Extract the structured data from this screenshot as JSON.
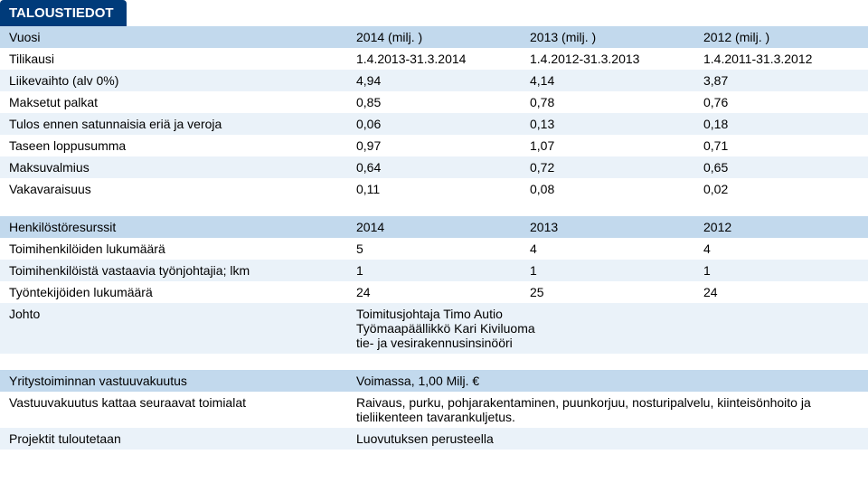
{
  "title": "TALOUSTIEDOT",
  "finance": {
    "header": {
      "label": "Vuosi",
      "c1": "2014 (milj. )",
      "c2": "2013 (milj. )",
      "c3": "2012 (milj. )"
    },
    "rows": [
      {
        "label": "Tilikausi",
        "c1": "1.4.2013-31.3.2014",
        "c2": "1.4.2012-31.3.2013",
        "c3": "1.4.2011-31.3.2012"
      },
      {
        "label": "Liikevaihto (alv 0%)",
        "c1": "4,94",
        "c2": "4,14",
        "c3": "3,87"
      },
      {
        "label": "Maksetut palkat",
        "c1": "0,85",
        "c2": "0,78",
        "c3": "0,76"
      },
      {
        "label": "Tulos ennen satunnaisia eriä ja veroja",
        "c1": "0,06",
        "c2": "0,13",
        "c3": "0,18"
      },
      {
        "label": "Taseen loppusumma",
        "c1": "0,97",
        "c2": "1,07",
        "c3": "0,71"
      },
      {
        "label": "Maksuvalmius",
        "c1": "0,64",
        "c2": "0,72",
        "c3": "0,65"
      },
      {
        "label": "Vakavaraisuus",
        "c1": "0,11",
        "c2": "0,08",
        "c3": "0,02"
      }
    ]
  },
  "hr": {
    "header": {
      "label": "Henkilöstöresurssit",
      "c1": "2014",
      "c2": "2013",
      "c3": "2012"
    },
    "rows": [
      {
        "label": "Toimihenkilöiden lukumäärä",
        "c1": "5",
        "c2": "4",
        "c3": "4"
      },
      {
        "label": "Toimihenkilöistä vastaavia työnjohtajia; lkm",
        "c1": "1",
        "c2": "1",
        "c3": "1"
      },
      {
        "label": "Työntekijöiden lukumäärä",
        "c1": "24",
        "c2": "25",
        "c3": "24"
      }
    ],
    "johto": {
      "label": "Johto",
      "value": "Toimitusjohtaja Timo Autio\nTyömaapäällikkö Kari Kiviluoma\ntie- ja vesirakennusinsinööri"
    }
  },
  "info": [
    {
      "label": "Yritystoiminnan vastuuvakuutus",
      "value": "Voimassa, 1,00 Milj. €"
    },
    {
      "label": "Vastuuvakuutus kattaa seuraavat toimialat",
      "value": "Raivaus, purku, pohjarakentaminen, puunkorjuu, nosturipalvelu, kiinteisönhoito ja tieliikenteen tavarankuljetus."
    },
    {
      "label": "Projektit tuloutetaan",
      "value": "Luovutuksen perusteella"
    }
  ],
  "style": {
    "header_bg": "#003b7a",
    "header_fg": "#ffffff",
    "row_hdr_bg": "#c2d9ed",
    "row_even_bg": "#eaf2f9",
    "row_odd_bg": "#ffffff",
    "font_family": "Arial, Helvetica, sans-serif",
    "font_size_base": 14,
    "title_font_size": 15
  }
}
